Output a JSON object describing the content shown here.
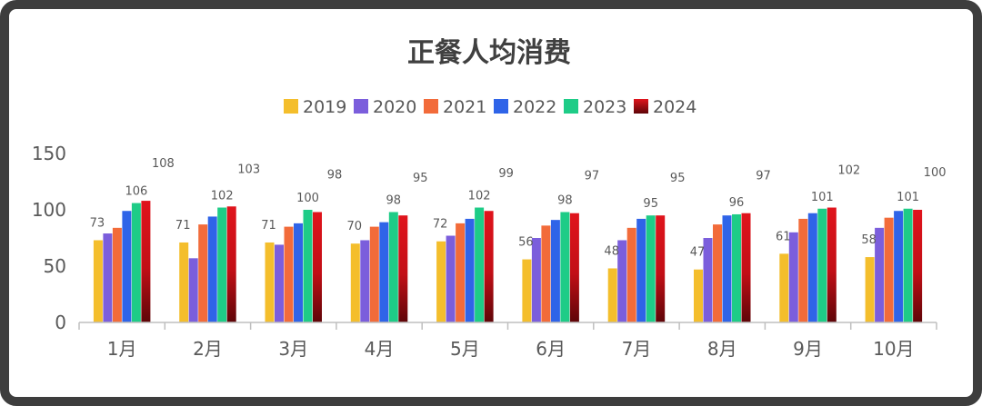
{
  "chart_data": {
    "type": "bar",
    "title": "正餐人均消费",
    "categories": [
      "1月",
      "2月",
      "3月",
      "4月",
      "5月",
      "6月",
      "7月",
      "8月",
      "9月",
      "10月"
    ],
    "series": [
      {
        "name": "2019",
        "color": "#F4BE2C",
        "values": [
          73,
          71,
          71,
          70,
          72,
          56,
          48,
          47,
          61,
          58
        ]
      },
      {
        "name": "2020",
        "color": "#7B5EDC",
        "values": [
          79,
          57,
          69,
          73,
          77,
          75,
          73,
          75,
          80,
          84
        ]
      },
      {
        "name": "2021",
        "color": "#F26B3A",
        "values": [
          84,
          87,
          85,
          85,
          88,
          86,
          84,
          87,
          92,
          93
        ]
      },
      {
        "name": "2022",
        "color": "#2F64E8",
        "values": [
          99,
          94,
          88,
          89,
          92,
          91,
          92,
          95,
          97,
          99
        ]
      },
      {
        "name": "2023",
        "color": "#1ECC87",
        "values": [
          106,
          102,
          100,
          98,
          102,
          98,
          95,
          96,
          101,
          101
        ]
      },
      {
        "name": "2024",
        "color": "#D6141A",
        "values": [
          108,
          103,
          98,
          95,
          99,
          97,
          95,
          97,
          102,
          100
        ]
      }
    ],
    "labeled_series": [
      "2019",
      "2023",
      "2024"
    ],
    "ylim": [
      0,
      150
    ],
    "yticks": [
      0,
      50,
      100,
      150
    ],
    "xlabel": "",
    "ylabel": "",
    "legend_position": "top",
    "grid": false
  }
}
